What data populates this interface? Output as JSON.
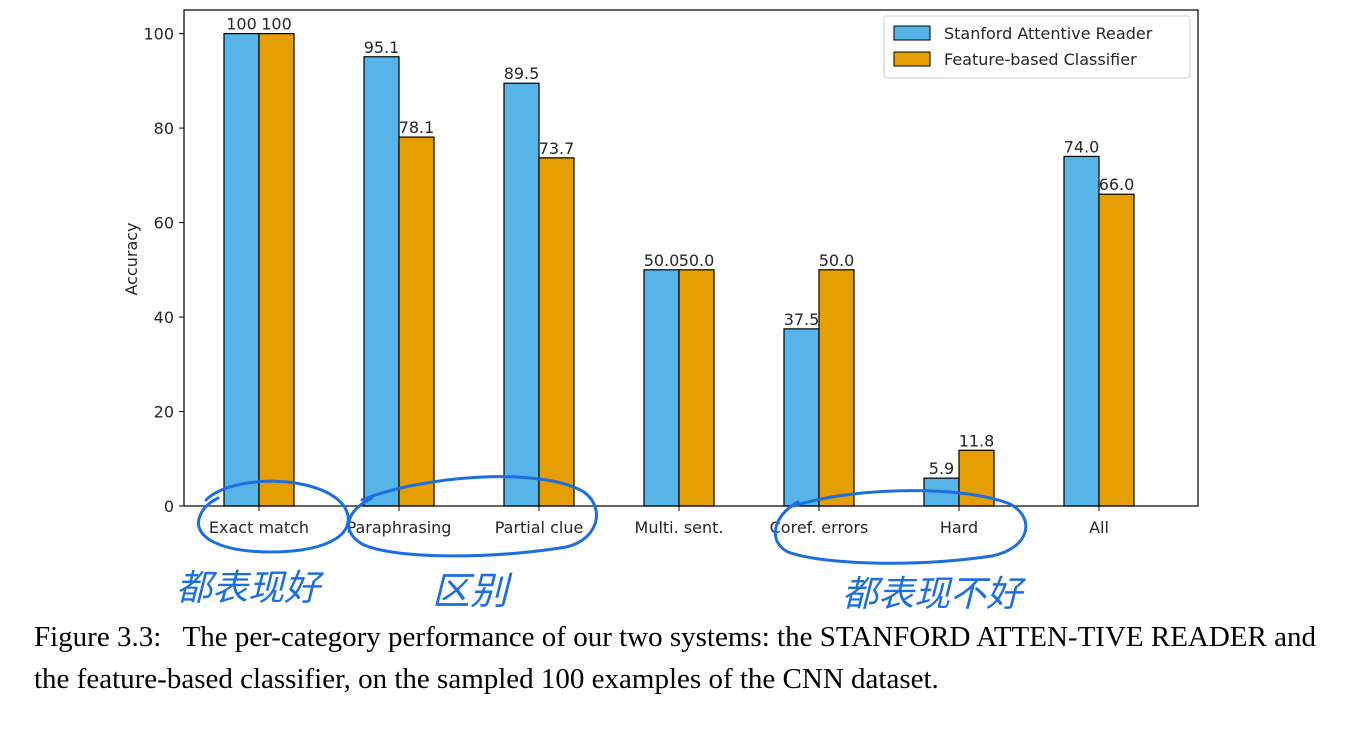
{
  "chart_data": {
    "type": "bar",
    "title": "",
    "xlabel": "",
    "ylabel": "Accuracy",
    "ylim": [
      0,
      105
    ],
    "yticks": [
      0,
      20,
      40,
      60,
      80,
      100
    ],
    "grid": false,
    "legend_position": "top-right",
    "categories": [
      "Exact match",
      "Paraphrasing",
      "Partial clue",
      "Multi. sent.",
      "Coref. errors",
      "Hard",
      "All"
    ],
    "series": [
      {
        "name": "Stanford Attentive Reader",
        "color": "#56b4e9",
        "values": [
          100,
          95.1,
          89.5,
          50.0,
          37.5,
          5.9,
          74.0
        ],
        "labels": [
          "100",
          "95.1",
          "89.5",
          "50.0",
          "37.5",
          "5.9",
          "74.0"
        ]
      },
      {
        "name": "Feature-based Classifier",
        "color": "#e69f00",
        "values": [
          100,
          78.1,
          73.7,
          50.0,
          50.0,
          11.8,
          66.0
        ],
        "labels": [
          "100",
          "78.1",
          "73.7",
          "50.0",
          "50.0",
          "11.8",
          "66.0"
        ]
      }
    ]
  },
  "annotations": {
    "note_good": "都表现好",
    "note_diff": "区别",
    "note_bad": "都表现不好",
    "color": "#1d6fe0"
  },
  "caption": {
    "prefix": "Figure 3.3:",
    "text": "The per-category performance of our two systems: the STANFORD ATTEN-TIVE READER and the feature-based classifier, on the sampled 100 examples of the CNN dataset."
  }
}
